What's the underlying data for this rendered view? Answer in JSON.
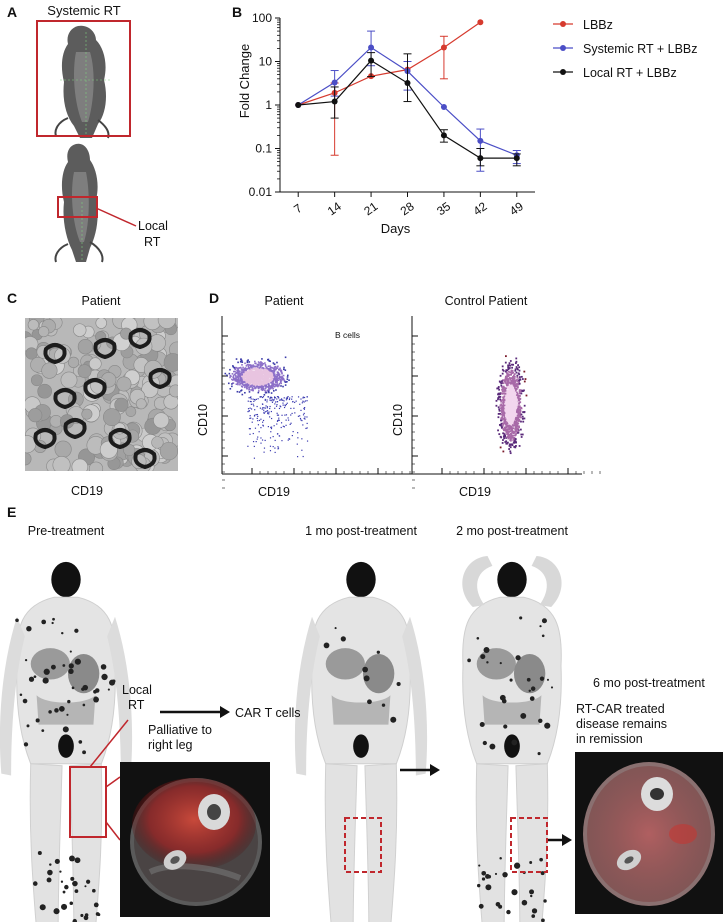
{
  "panels": {
    "a": {
      "letter": "A",
      "title": "Systemic RT",
      "local_label_1": "Local",
      "local_label_2": "RT",
      "frame_color": "#c0272d"
    },
    "b": {
      "letter": "B"
    },
    "c": {
      "letter": "C",
      "title": "Patient",
      "xlabel": "CD19"
    },
    "d": {
      "letter": "D",
      "left_title": "Patient",
      "right_title": "Control Patient",
      "gate_label": "B cells",
      "left_xlabel": "CD19",
      "left_ylabel": "CD10",
      "right_xlabel": "CD19",
      "right_ylabel": "CD10"
    },
    "e": {
      "letter": "E",
      "pre_title": "Pre-treatment",
      "one_mo_title": "1 mo post-treatment",
      "two_mo_title": "2 mo post-treatment",
      "six_mo_title": "6 mo post-treatment",
      "local_rt_1": "Local",
      "local_rt_2": "RT",
      "car_t": "CAR T cells",
      "palliative_1": "Palliative to",
      "palliative_2": "right leg",
      "remission_1": "RT-CAR treated",
      "remission_2": "disease remains",
      "remission_3": "in remission"
    }
  },
  "chart_data": {
    "type": "line",
    "title": "",
    "xlabel": "Days",
    "ylabel": "Fold Change",
    "yscale": "log",
    "ylim": [
      0.01,
      100
    ],
    "x": [
      7,
      14,
      21,
      28,
      35,
      42,
      49
    ],
    "ytick_labels": [
      "100",
      "10",
      "1",
      "0.1",
      "0.01"
    ],
    "legend_position": "top-right",
    "series": [
      {
        "name": "LBBz",
        "color": "#d63a2e",
        "points": [
          {
            "x": 7,
            "y": 1.0
          },
          {
            "x": 14,
            "y": 1.9,
            "lo": 0.07,
            "hi": 3.2
          },
          {
            "x": 21,
            "y": 4.6
          },
          {
            "x": 28,
            "y": 6.5
          },
          {
            "x": 35,
            "y": 21,
            "lo": 4,
            "hi": 38
          },
          {
            "x": 42,
            "y": 80
          }
        ]
      },
      {
        "name": "Systemic RT + LBBz",
        "color": "#4b4ec6",
        "points": [
          {
            "x": 7,
            "y": 1.0
          },
          {
            "x": 14,
            "y": 3.3,
            "lo": 1.6,
            "hi": 6.2
          },
          {
            "x": 21,
            "y": 21,
            "lo": 8,
            "hi": 50
          },
          {
            "x": 28,
            "y": 6.0,
            "lo": 2.2,
            "hi": 10
          },
          {
            "x": 35,
            "y": 0.9
          },
          {
            "x": 42,
            "y": 0.15,
            "lo": 0.03,
            "hi": 0.28
          },
          {
            "x": 49,
            "y": 0.07,
            "lo": 0.045,
            "hi": 0.09
          }
        ]
      },
      {
        "name": "Local RT + LBBz",
        "color": "#111111",
        "points": [
          {
            "x": 7,
            "y": 1.0
          },
          {
            "x": 14,
            "y": 1.2,
            "lo": 0.5,
            "hi": 2.6
          },
          {
            "x": 21,
            "y": 10.5,
            "lo": 4.5,
            "hi": 16
          },
          {
            "x": 28,
            "y": 3.2,
            "lo": 1.2,
            "hi": 15
          },
          {
            "x": 35,
            "y": 0.2,
            "lo": 0.14,
            "hi": 0.27
          },
          {
            "x": 42,
            "y": 0.06,
            "lo": 0.04,
            "hi": 0.1
          },
          {
            "x": 49,
            "y": 0.06,
            "lo": 0.04,
            "hi": 0.075
          }
        ]
      }
    ]
  }
}
